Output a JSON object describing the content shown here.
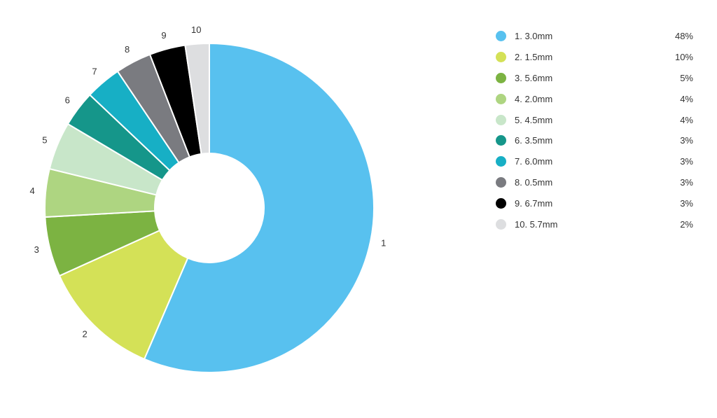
{
  "chart_data": {
    "type": "pie",
    "variant": "donut",
    "legend_position": "right",
    "categories": [
      "1",
      "2",
      "3",
      "4",
      "5",
      "6",
      "7",
      "8",
      "9",
      "10"
    ],
    "values": [
      48,
      10,
      5,
      4,
      4,
      3,
      3,
      3,
      3,
      2
    ],
    "legend": [
      {
        "label": "1. 3.0mm",
        "value": "48%",
        "color": "#58C1EF"
      },
      {
        "label": "2. 1.5mm",
        "value": "10%",
        "color": "#D4E157"
      },
      {
        "label": "3. 5.6mm",
        "value": "5%",
        "color": "#7CB342"
      },
      {
        "label": "4. 2.0mm",
        "value": "4%",
        "color": "#AED581"
      },
      {
        "label": "5. 4.5mm",
        "value": "4%",
        "color": "#C8E6C9"
      },
      {
        "label": "6. 3.5mm",
        "value": "3%",
        "color": "#15968A"
      },
      {
        "label": "7. 6.0mm",
        "value": "3%",
        "color": "#17AFC5"
      },
      {
        "label": "8. 0.5mm",
        "value": "3%",
        "color": "#7A7B80"
      },
      {
        "label": "9. 6.7mm",
        "value": "3%",
        "color": "#000000"
      },
      {
        "label": "10. 5.7mm",
        "value": "2%",
        "color": "#DDDEE0"
      }
    ]
  }
}
